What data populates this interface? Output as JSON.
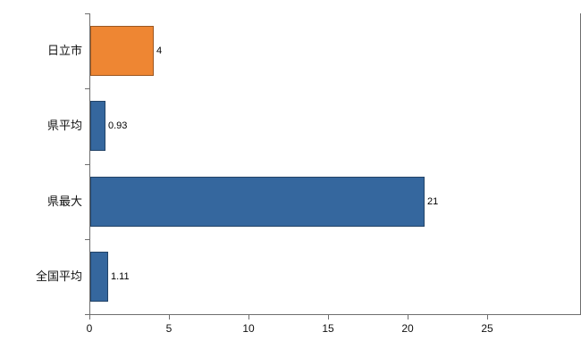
{
  "chart_data": {
    "type": "bar",
    "orientation": "horizontal",
    "title": "",
    "xlabel": "",
    "ylabel": "",
    "categories": [
      "日立市",
      "県平均",
      "県最大",
      "全国平均"
    ],
    "values": [
      4,
      0.93,
      21,
      1.11
    ],
    "value_labels": [
      "4",
      "0.93",
      "21",
      "1.11"
    ],
    "bar_colors": [
      "#ee8633",
      "#35679e",
      "#35679e",
      "#35679e"
    ],
    "xlim": [
      0,
      25
    ],
    "x_ticks": [
      0,
      5,
      10,
      15,
      20,
      25
    ],
    "x_tick_labels": [
      "0",
      "5",
      "10",
      "15",
      "20",
      "25"
    ],
    "grid": false,
    "legend_position": "none"
  },
  "colors": {
    "bar_orange": "#ee8633",
    "bar_blue": "#35679e",
    "axis": "#6e6e6e",
    "text": "#000000",
    "background": "#ffffff"
  }
}
